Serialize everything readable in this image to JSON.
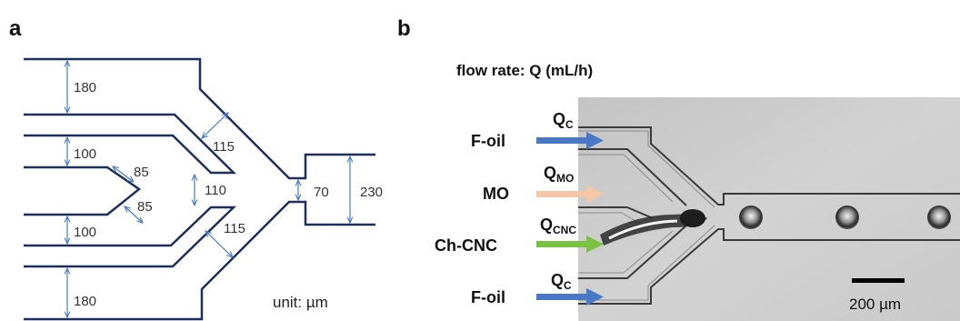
{
  "panels": {
    "a": {
      "letter": "a",
      "dimensions": [
        "180",
        "100",
        "85",
        "85",
        "100",
        "180",
        "115",
        "115",
        "110",
        "70",
        "230"
      ],
      "unit_text": "unit: µm"
    },
    "b": {
      "letter": "b",
      "flow_title": "flow rate: Q (mL/h)",
      "inlets": [
        {
          "fluid": "F-oil",
          "q_main": "Q",
          "q_sub": "C",
          "color": "#4a78c8"
        },
        {
          "fluid": "MO",
          "q_main": "Q",
          "q_sub": "MO",
          "color": "#f6c6a6"
        },
        {
          "fluid": "Ch-CNC",
          "q_main": "Q",
          "q_sub": "CNC",
          "color": "#7cc242"
        },
        {
          "fluid": "F-oil",
          "q_main": "Q",
          "q_sub": "C",
          "color": "#4a78c8"
        }
      ],
      "scale_bar_text": "200 µm",
      "photo_bg_color": "#cdcdcd"
    }
  }
}
